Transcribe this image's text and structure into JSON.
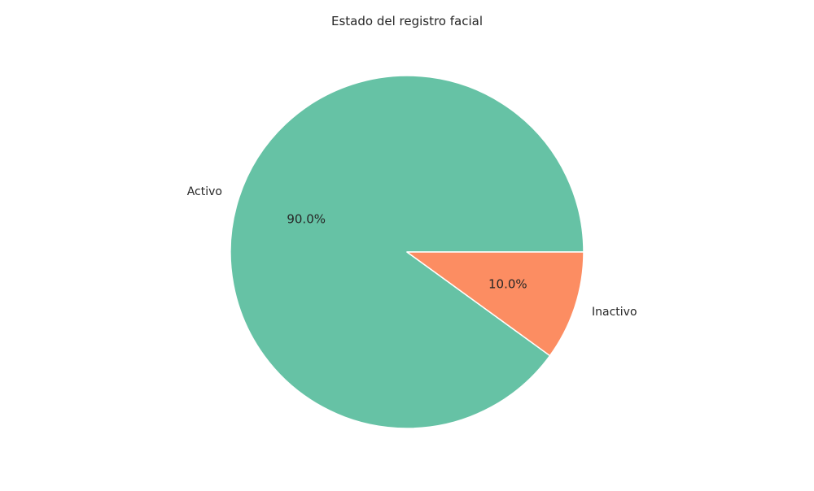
{
  "chart_data": {
    "type": "pie",
    "title": "Estado del registro facial",
    "categories": [
      "Activo",
      "Inactivo"
    ],
    "values": [
      90,
      10
    ],
    "autopct": [
      "90.0%",
      "10.0%"
    ],
    "colors": [
      "#66c2a5",
      "#fc8d62"
    ],
    "start_angle_deg": 0,
    "direction": "counterclockwise",
    "legend": "none",
    "grid": false
  }
}
